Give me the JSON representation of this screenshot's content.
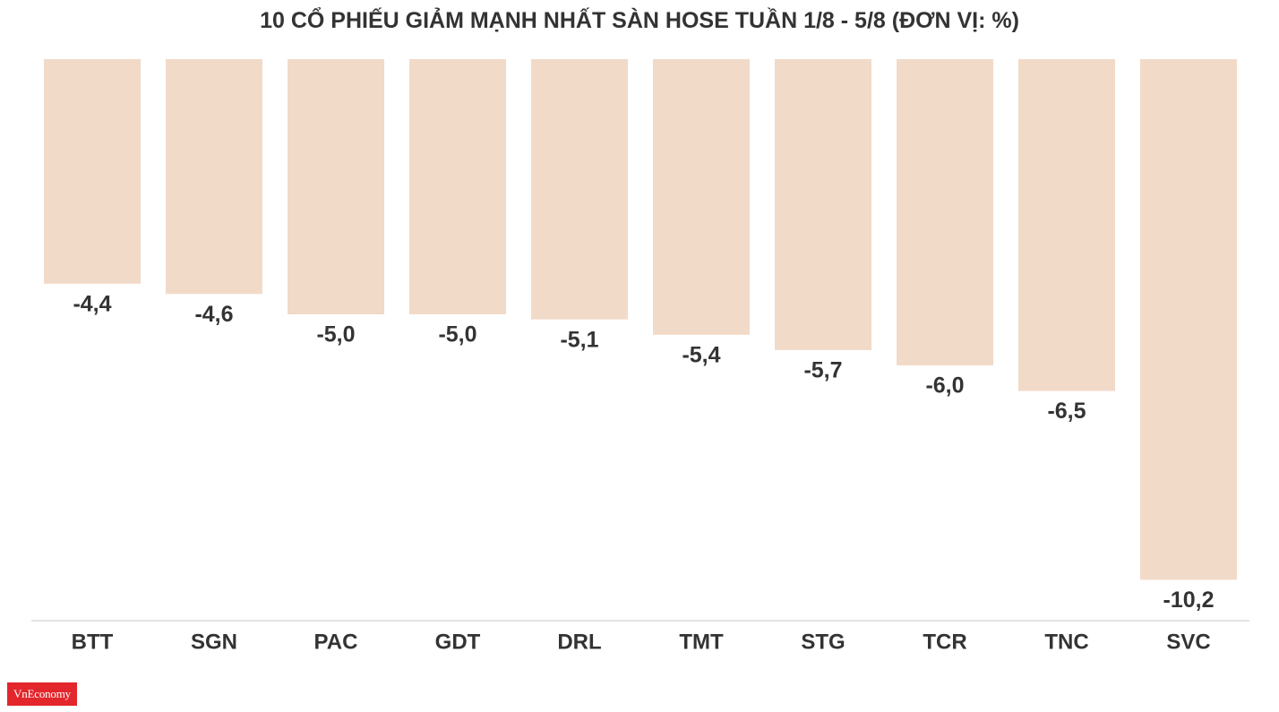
{
  "chart_data": {
    "type": "bar",
    "title": "10 CỔ PHIẾU GIẢM MẠNH NHẤT SÀN HOSE TUẦN 1/8 - 5/8 (ĐƠN VỊ: %)",
    "categories": [
      "BTT",
      "SGN",
      "PAC",
      "GDT",
      "DRL",
      "TMT",
      "STG",
      "TCR",
      "TNC",
      "SVC"
    ],
    "values": [
      -4.4,
      -4.6,
      -5.0,
      -5.0,
      -5.1,
      -5.4,
      -5.7,
      -6.0,
      -6.5,
      -10.2
    ],
    "labels": [
      "-4,4",
      "-4,6",
      "-5,0",
      "-5,0",
      "-5,1",
      "-5,4",
      "-5,7",
      "-6,0",
      "-6,5",
      "-10,2"
    ],
    "ylim": [
      -11,
      0
    ],
    "grid": false,
    "legend": "none",
    "colors": {
      "bar": "#f2dac9",
      "text": "#333333",
      "axis": "#e2e2e2"
    }
  },
  "logo": {
    "text": "VnEconomy",
    "color": "#e3262b"
  }
}
